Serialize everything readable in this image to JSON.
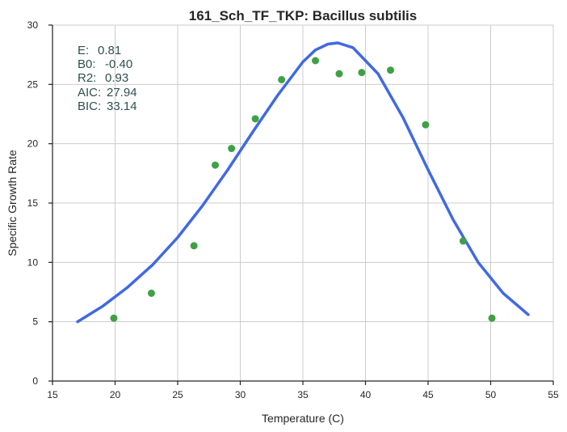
{
  "chart_data": {
    "type": "scatter",
    "title": "161_Sch_TF_TKP: Bacillus subtilis",
    "xlabel": "Temperature (C)",
    "ylabel": "Specific Growth Rate",
    "xlim": [
      15,
      55
    ],
    "ylim": [
      0,
      30
    ],
    "xticks": [
      15,
      20,
      25,
      30,
      35,
      40,
      45,
      50,
      55
    ],
    "yticks": [
      0,
      5,
      10,
      15,
      20,
      25,
      30
    ],
    "grid": true,
    "annotations": [
      {
        "label": "E:",
        "value": "0.81"
      },
      {
        "label": "B0:",
        "value": "-0.40"
      },
      {
        "label": "R2:",
        "value": "0.93"
      },
      {
        "label": "AIC:",
        "value": "27.94"
      },
      {
        "label": "BIC:",
        "value": "33.14"
      }
    ],
    "series": [
      {
        "type": "scatter",
        "color": "#3fa045",
        "x": [
          19.9,
          22.9,
          26.3,
          28.0,
          29.3,
          31.2,
          33.3,
          36.0,
          37.9,
          39.7,
          42.0,
          44.8,
          47.8,
          50.1
        ],
        "y": [
          5.3,
          7.4,
          11.4,
          18.2,
          19.6,
          22.1,
          25.4,
          27.0,
          25.9,
          26.0,
          26.2,
          21.6,
          11.8,
          5.3
        ]
      },
      {
        "type": "line",
        "color": "#4169e1",
        "x": [
          17,
          19,
          21,
          23,
          25,
          27,
          29,
          31,
          33,
          35,
          36,
          37,
          37.8,
          39,
          41,
          43,
          45,
          47,
          49,
          51,
          53
        ],
        "y": [
          5.0,
          6.3,
          7.9,
          9.8,
          12.1,
          14.8,
          17.8,
          21.0,
          24.1,
          26.9,
          27.9,
          28.4,
          28.5,
          28.1,
          25.9,
          22.2,
          17.8,
          13.6,
          10.0,
          7.4,
          5.6
        ]
      }
    ]
  }
}
